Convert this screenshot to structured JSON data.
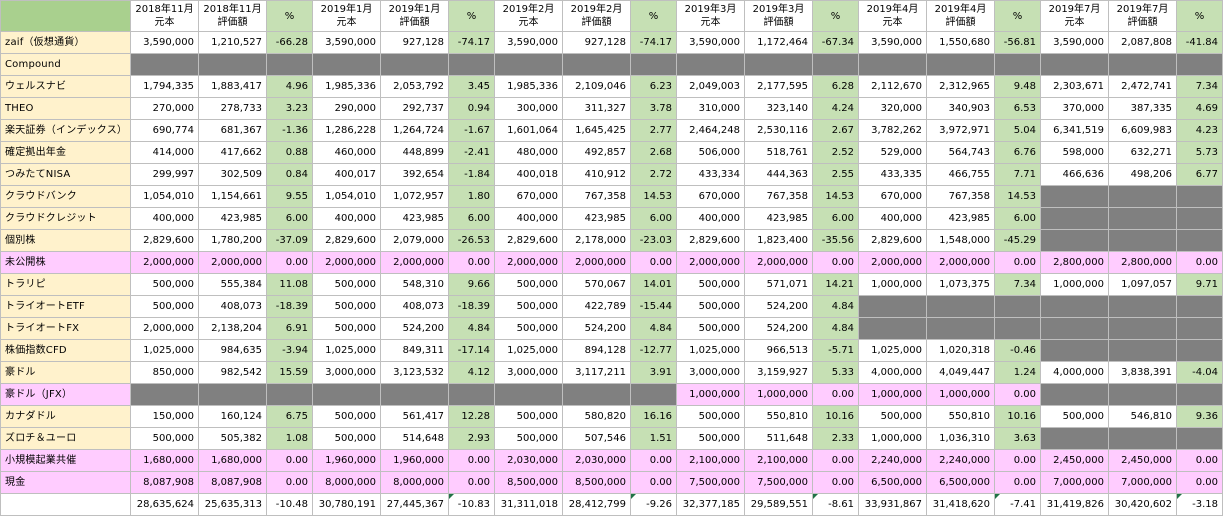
{
  "periods": [
    {
      "month": "2018年11月",
      "principal_label": "元本",
      "valuation_label": "評価額",
      "pct_label": "%"
    },
    {
      "month": "2019年1月",
      "principal_label": "元本",
      "valuation_label": "評価額",
      "pct_label": "%"
    },
    {
      "month": "2019年2月",
      "principal_label": "元本",
      "valuation_label": "評価額",
      "pct_label": "%"
    },
    {
      "month": "2019年3月",
      "principal_label": "元本",
      "valuation_label": "評価額",
      "pct_label": "%"
    },
    {
      "month": "2019年4月",
      "principal_label": "元本",
      "valuation_label": "評価額",
      "pct_label": "%"
    },
    {
      "month": "2019年7月",
      "principal_label": "元本",
      "valuation_label": "評価額",
      "pct_label": "%"
    }
  ],
  "rows": [
    {
      "label": "zaif（仮想通貨）",
      "label_bg": "yellow",
      "cells": [
        [
          "3,590,000",
          "1,210,527",
          "-66.28"
        ],
        [
          "3,590,000",
          "927,128",
          "-74.17"
        ],
        [
          "3,590,000",
          "927,128",
          "-74.17"
        ],
        [
          "3,590,000",
          "1,172,464",
          "-67.34"
        ],
        [
          "3,590,000",
          "1,550,680",
          "-56.81"
        ],
        [
          "3,590,000",
          "2,087,808",
          "-41.84"
        ]
      ]
    },
    {
      "label": "Compound",
      "label_bg": "yellow",
      "cells": [
        null,
        null,
        null,
        null,
        null,
        null
      ]
    },
    {
      "label": "ウェルスナビ",
      "label_bg": "yellow",
      "cells": [
        [
          "1,794,335",
          "1,883,417",
          "4.96"
        ],
        [
          "1,985,336",
          "2,053,792",
          "3.45"
        ],
        [
          "1,985,336",
          "2,109,046",
          "6.23"
        ],
        [
          "2,049,003",
          "2,177,595",
          "6.28"
        ],
        [
          "2,112,670",
          "2,312,965",
          "9.48"
        ],
        [
          "2,303,671",
          "2,472,741",
          "7.34"
        ]
      ]
    },
    {
      "label": "THEO",
      "label_bg": "yellow",
      "cells": [
        [
          "270,000",
          "278,733",
          "3.23"
        ],
        [
          "290,000",
          "292,737",
          "0.94"
        ],
        [
          "300,000",
          "311,327",
          "3.78"
        ],
        [
          "310,000",
          "323,140",
          "4.24"
        ],
        [
          "320,000",
          "340,903",
          "6.53"
        ],
        [
          "370,000",
          "387,335",
          "4.69"
        ]
      ]
    },
    {
      "label": "楽天証券（インデックス）",
      "label_bg": "yellow",
      "cells": [
        [
          "690,774",
          "681,367",
          "-1.36"
        ],
        [
          "1,286,228",
          "1,264,724",
          "-1.67"
        ],
        [
          "1,601,064",
          "1,645,425",
          "2.77"
        ],
        [
          "2,464,248",
          "2,530,116",
          "2.67"
        ],
        [
          "3,782,262",
          "3,972,971",
          "5.04"
        ],
        [
          "6,341,519",
          "6,609,983",
          "4.23"
        ]
      ]
    },
    {
      "label": "確定拠出年金",
      "label_bg": "yellow",
      "cells": [
        [
          "414,000",
          "417,662",
          "0.88"
        ],
        [
          "460,000",
          "448,899",
          "-2.41"
        ],
        [
          "480,000",
          "492,857",
          "2.68"
        ],
        [
          "506,000",
          "518,761",
          "2.52"
        ],
        [
          "529,000",
          "564,743",
          "6.76"
        ],
        [
          "598,000",
          "632,271",
          "5.73"
        ]
      ]
    },
    {
      "label": "つみたてNISA",
      "label_bg": "yellow",
      "cells": [
        [
          "299,997",
          "302,509",
          "0.84"
        ],
        [
          "400,017",
          "392,654",
          "-1.84"
        ],
        [
          "400,018",
          "410,912",
          "2.72"
        ],
        [
          "433,334",
          "444,363",
          "2.55"
        ],
        [
          "433,335",
          "466,755",
          "7.71"
        ],
        [
          "466,636",
          "498,206",
          "6.77"
        ]
      ]
    },
    {
      "label": "クラウドバンク",
      "label_bg": "yellow",
      "cells": [
        [
          "1,054,010",
          "1,154,661",
          "9.55"
        ],
        [
          "1,054,010",
          "1,072,957",
          "1.80"
        ],
        [
          "670,000",
          "767,358",
          "14.53"
        ],
        [
          "670,000",
          "767,358",
          "14.53"
        ],
        [
          "670,000",
          "767,358",
          "14.53"
        ],
        null
      ]
    },
    {
      "label": "クラウドクレジット",
      "label_bg": "yellow",
      "cells": [
        [
          "400,000",
          "423,985",
          "6.00"
        ],
        [
          "400,000",
          "423,985",
          "6.00"
        ],
        [
          "400,000",
          "423,985",
          "6.00"
        ],
        [
          "400,000",
          "423,985",
          "6.00"
        ],
        [
          "400,000",
          "423,985",
          "6.00"
        ],
        null
      ]
    },
    {
      "label": "個別株",
      "label_bg": "yellow",
      "cells": [
        [
          "2,829,600",
          "1,780,200",
          "-37.09"
        ],
        [
          "2,829,600",
          "2,079,000",
          "-26.53"
        ],
        [
          "2,829,600",
          "2,178,000",
          "-23.03"
        ],
        [
          "2,829,600",
          "1,823,400",
          "-35.56"
        ],
        [
          "2,829,600",
          "1,548,000",
          "-45.29"
        ],
        null
      ]
    },
    {
      "label": "未公開株",
      "label_bg": "pink",
      "pink": true,
      "cells": [
        [
          "2,000,000",
          "2,000,000",
          "0.00"
        ],
        [
          "2,000,000",
          "2,000,000",
          "0.00"
        ],
        [
          "2,000,000",
          "2,000,000",
          "0.00"
        ],
        [
          "2,000,000",
          "2,000,000",
          "0.00"
        ],
        [
          "2,000,000",
          "2,000,000",
          "0.00"
        ],
        [
          "2,800,000",
          "2,800,000",
          "0.00"
        ]
      ]
    },
    {
      "label": "トラリピ",
      "label_bg": "yellow",
      "cells": [
        [
          "500,000",
          "555,384",
          "11.08"
        ],
        [
          "500,000",
          "548,310",
          "9.66"
        ],
        [
          "500,000",
          "570,067",
          "14.01"
        ],
        [
          "500,000",
          "571,071",
          "14.21"
        ],
        [
          "1,000,000",
          "1,073,375",
          "7.34"
        ],
        [
          "1,000,000",
          "1,097,057",
          "9.71"
        ]
      ]
    },
    {
      "label": "トライオートETF",
      "label_bg": "yellow",
      "cells": [
        [
          "500,000",
          "408,073",
          "-18.39"
        ],
        [
          "500,000",
          "408,073",
          "-18.39"
        ],
        [
          "500,000",
          "422,789",
          "-15.44"
        ],
        [
          "500,000",
          "524,200",
          "4.84"
        ],
        null,
        null
      ]
    },
    {
      "label": "トライオートFX",
      "label_bg": "yellow",
      "cells": [
        [
          "2,000,000",
          "2,138,204",
          "6.91"
        ],
        [
          "500,000",
          "524,200",
          "4.84"
        ],
        [
          "500,000",
          "524,200",
          "4.84"
        ],
        [
          "500,000",
          "524,200",
          "4.84"
        ],
        null,
        null
      ]
    },
    {
      "label": "株価指数CFD",
      "label_bg": "yellow",
      "cells": [
        [
          "1,025,000",
          "984,635",
          "-3.94"
        ],
        [
          "1,025,000",
          "849,311",
          "-17.14"
        ],
        [
          "1,025,000",
          "894,128",
          "-12.77"
        ],
        [
          "1,025,000",
          "966,513",
          "-5.71"
        ],
        [
          "1,025,000",
          "1,020,318",
          "-0.46"
        ],
        null
      ]
    },
    {
      "label": "豪ドル",
      "label_bg": "yellow",
      "cells": [
        [
          "850,000",
          "982,542",
          "15.59"
        ],
        [
          "3,000,000",
          "3,123,532",
          "4.12"
        ],
        [
          "3,000,000",
          "3,117,211",
          "3.91"
        ],
        [
          "3,000,000",
          "3,159,927",
          "5.33"
        ],
        [
          "4,000,000",
          "4,049,447",
          "1.24"
        ],
        [
          "4,000,000",
          "3,838,391",
          "-4.04"
        ]
      ]
    },
    {
      "label": "豪ドル（JFX）",
      "label_bg": "pink",
      "cells": [
        null,
        null,
        null,
        [
          "1,000,000",
          "1,000,000",
          "0.00",
          "pink"
        ],
        [
          "1,000,000",
          "1,000,000",
          "0.00",
          "pink"
        ],
        null
      ]
    },
    {
      "label": "カナダドル",
      "label_bg": "yellow",
      "cells": [
        [
          "150,000",
          "160,124",
          "6.75"
        ],
        [
          "500,000",
          "561,417",
          "12.28"
        ],
        [
          "500,000",
          "580,820",
          "16.16"
        ],
        [
          "500,000",
          "550,810",
          "10.16"
        ],
        [
          "500,000",
          "550,810",
          "10.16"
        ],
        [
          "500,000",
          "546,810",
          "9.36"
        ]
      ]
    },
    {
      "label": "ズロチ＆ユーロ",
      "label_bg": "yellow",
      "cells": [
        [
          "500,000",
          "505,382",
          "1.08"
        ],
        [
          "500,000",
          "514,648",
          "2.93"
        ],
        [
          "500,000",
          "507,546",
          "1.51"
        ],
        [
          "500,000",
          "511,648",
          "2.33"
        ],
        [
          "1,000,000",
          "1,036,310",
          "3.63"
        ],
        null
      ]
    },
    {
      "label": "小規模起業共催",
      "label_bg": "pink",
      "pink": true,
      "cells": [
        [
          "1,680,000",
          "1,680,000",
          "0.00"
        ],
        [
          "1,960,000",
          "1,960,000",
          "0.00"
        ],
        [
          "2,030,000",
          "2,030,000",
          "0.00"
        ],
        [
          "2,100,000",
          "2,100,000",
          "0.00"
        ],
        [
          "2,240,000",
          "2,240,000",
          "0.00"
        ],
        [
          "2,450,000",
          "2,450,000",
          "0.00"
        ]
      ]
    },
    {
      "label": "現金",
      "label_bg": "pink",
      "pink": true,
      "cells": [
        [
          "8,087,908",
          "8,087,908",
          "0.00"
        ],
        [
          "8,000,000",
          "8,000,000",
          "0.00"
        ],
        [
          "8,500,000",
          "8,500,000",
          "0.00"
        ],
        [
          "7,500,000",
          "7,500,000",
          "0.00"
        ],
        [
          "6,500,000",
          "6,500,000",
          "0.00"
        ],
        [
          "7,000,000",
          "7,000,000",
          "0.00"
        ]
      ]
    }
  ],
  "totals": [
    [
      "28,635,624",
      "25,635,313",
      "-10.48"
    ],
    [
      "30,780,191",
      "27,445,367",
      "-10.83"
    ],
    [
      "31,311,018",
      "28,412,799",
      "-9.26"
    ],
    [
      "32,377,185",
      "29,589,551",
      "-8.61"
    ],
    [
      "33,931,867",
      "31,418,620",
      "-7.41"
    ],
    [
      "31,419,826",
      "30,420,602",
      "-3.18"
    ]
  ]
}
